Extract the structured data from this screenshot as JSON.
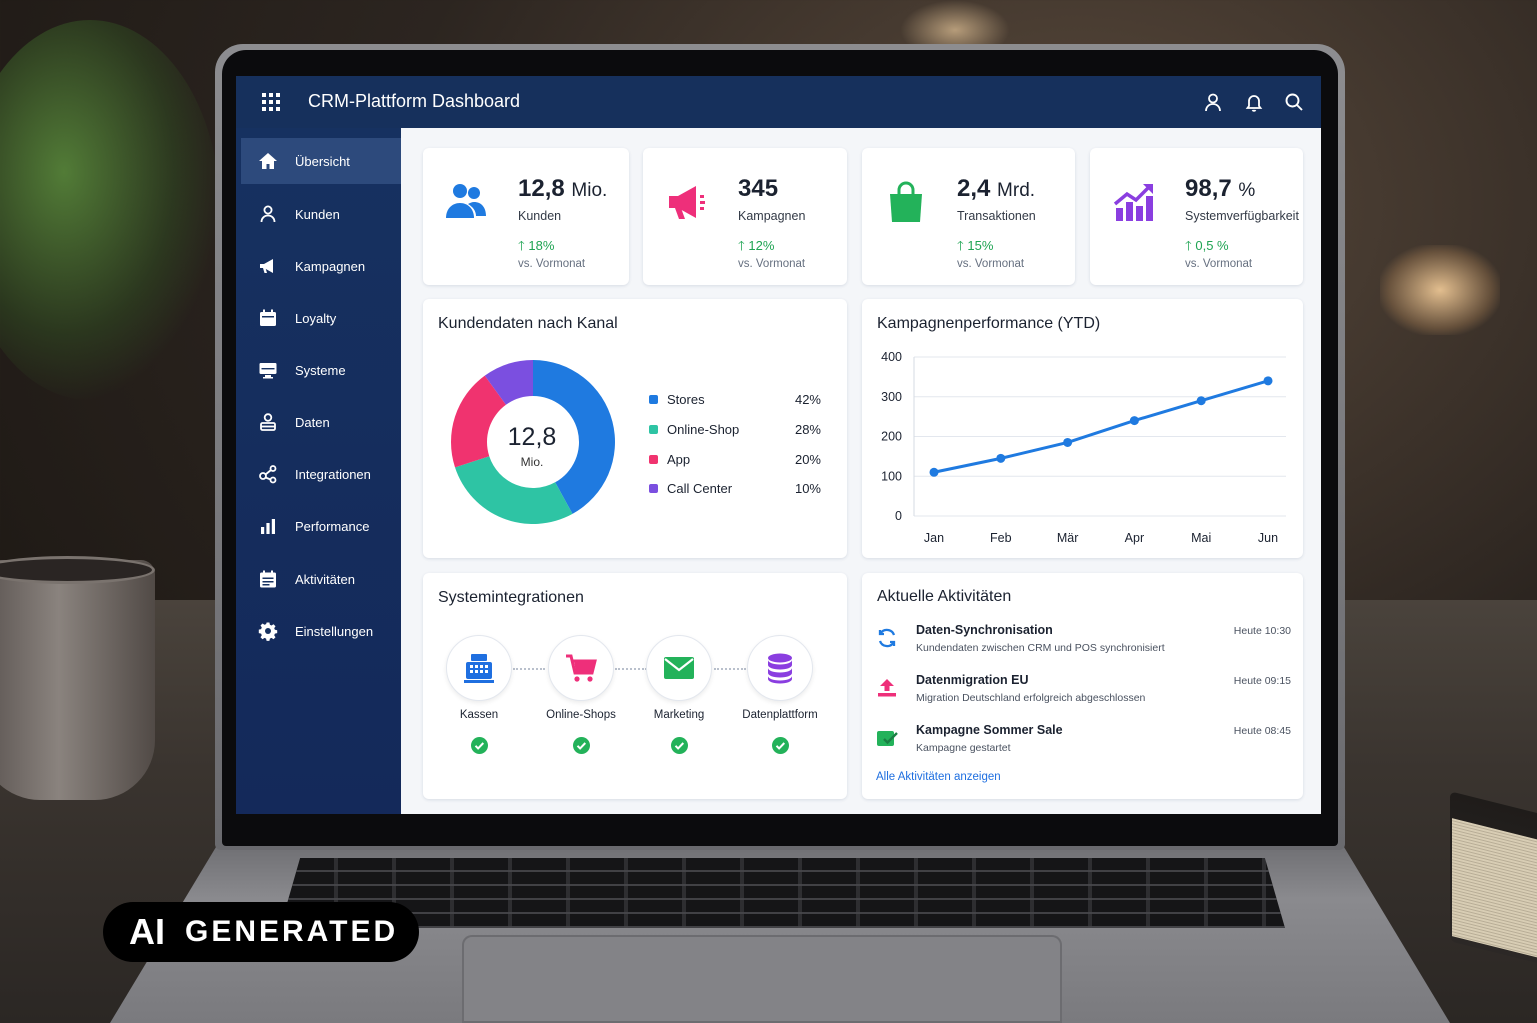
{
  "app": {
    "title": "CRM-Plattform Dashboard"
  },
  "sidebar": {
    "items": [
      {
        "label": "Übersicht",
        "icon": "home-icon",
        "active": true
      },
      {
        "label": "Kunden",
        "icon": "user-icon"
      },
      {
        "label": "Kampagnen",
        "icon": "megaphone-icon"
      },
      {
        "label": "Loyalty",
        "icon": "calendar-icon"
      },
      {
        "label": "Systeme",
        "icon": "monitor-icon"
      },
      {
        "label": "Daten",
        "icon": "data-user-icon"
      },
      {
        "label": "Integrationen",
        "icon": "share-icon"
      },
      {
        "label": "Performance",
        "icon": "bar-chart-icon"
      },
      {
        "label": "Aktivitäten",
        "icon": "list-calendar-icon"
      },
      {
        "label": "Einstellungen",
        "icon": "gear-icon"
      }
    ]
  },
  "kpis": [
    {
      "value": "12,8",
      "unit": "Mio.",
      "label": "Kunden",
      "trend": "18%",
      "sub": "vs. Vormonat",
      "icon": "users-icon",
      "color": "#1f7ae0"
    },
    {
      "value": "345",
      "unit": "",
      "label": "Kampagnen",
      "trend": "12%",
      "sub": "vs. Vormonat",
      "icon": "megaphone-icon",
      "color": "#ee2f7a"
    },
    {
      "value": "2,4",
      "unit": "Mrd.",
      "label": "Transaktionen",
      "trend": "15%",
      "sub": "vs. Vormonat",
      "icon": "shopping-bag-icon",
      "color": "#23b25a"
    },
    {
      "value": "98,7",
      "unit": "%",
      "label": "Systemverfügbarkeit",
      "trend": "0,5 %",
      "sub": "vs. Vormonat",
      "icon": "growth-chart-icon",
      "color": "#8a3ee0"
    }
  ],
  "channel": {
    "title": "Kundendaten nach Kanal",
    "center_value": "12,8",
    "center_unit": "Mio.",
    "legend": [
      {
        "name": "Stores",
        "pct": "42%",
        "value": 42,
        "color": "#1f7ae0"
      },
      {
        "name": "Online-Shop",
        "pct": "28%",
        "value": 28,
        "color": "#2ec4a4"
      },
      {
        "name": "App",
        "pct": "20%",
        "value": 20,
        "color": "#f0336f"
      },
      {
        "name": "Call Center",
        "pct": "10%",
        "value": 10,
        "color": "#7b4fe0"
      }
    ]
  },
  "chart_data": {
    "type": "line",
    "title": "Kampagnenperformance (YTD)",
    "categories": [
      "Jan",
      "Feb",
      "Mär",
      "Apr",
      "Mai",
      "Jun"
    ],
    "values": [
      110,
      145,
      185,
      240,
      290,
      340
    ],
    "ylim": [
      0,
      400
    ],
    "yticks": [
      "0",
      "100",
      "200",
      "300",
      "400"
    ],
    "grid": true,
    "color": "#1f7ae0"
  },
  "integrations": {
    "title": "Systemintegrationen",
    "items": [
      {
        "name": "Kassen",
        "icon": "cash-register-icon",
        "color": "#1f6fe0"
      },
      {
        "name": "Online-Shops",
        "icon": "cart-icon",
        "color": "#ee2f7a"
      },
      {
        "name": "Marketing",
        "icon": "mail-icon",
        "color": "#23b25a"
      },
      {
        "name": "Datenplattform",
        "icon": "database-icon",
        "color": "#8a3ee0"
      }
    ]
  },
  "activities": {
    "title": "Aktuelle Aktivitäten",
    "items": [
      {
        "title": "Daten-Synchronisation",
        "desc": "Kundendaten zwischen CRM und POS synchronisiert",
        "time": "Heute 10:30",
        "icon": "sync-icon",
        "color": "#1f7ae0"
      },
      {
        "title": "Datenmigration EU",
        "desc": "Migration Deutschland erfolgreich abgeschlossen",
        "time": "Heute 09:15",
        "icon": "upload-icon",
        "color": "#ee2f7a"
      },
      {
        "title": "Kampagne Sommer Sale",
        "desc": "Kampagne gestartet",
        "time": "Heute 08:45",
        "icon": "campaign-check-icon",
        "color": "#23b25a"
      }
    ],
    "link": "Alle Aktivitäten anzeigen"
  },
  "badge": {
    "ai": "AI",
    "generated": "GENERATED"
  }
}
